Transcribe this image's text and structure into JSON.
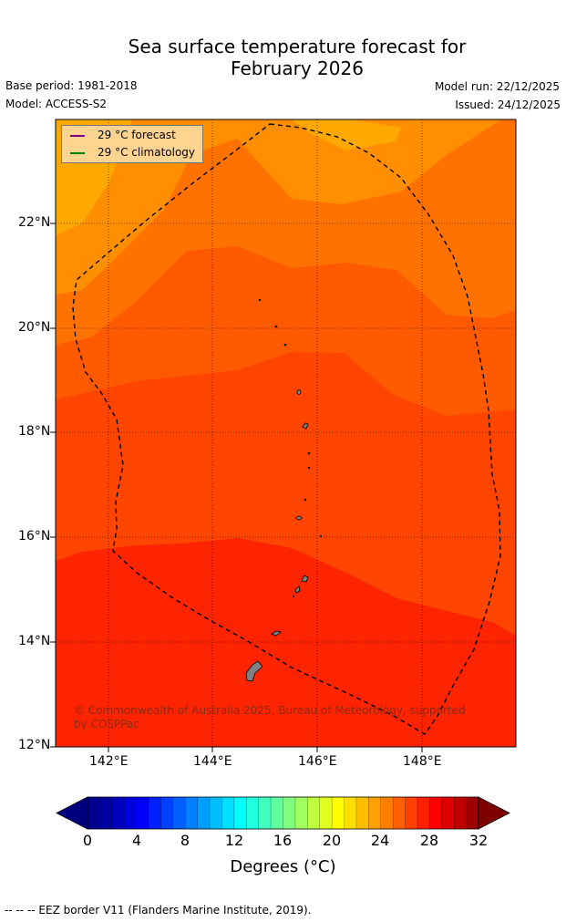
{
  "title_line1": "Sea surface temperature forecast for",
  "title_line2": "February 2026",
  "base_period": "Base period: 1981-2018",
  "model": "Model: ACCESS-S2",
  "model_run": "Model run: 22/12/2025",
  "issued": "Issued: 24/12/2025",
  "legend": {
    "forecast_label": "29 °C  forecast",
    "forecast_color": "#800080",
    "climatology_label": "29 °C  climatology",
    "climatology_color": "#008000"
  },
  "axes": {
    "lon_ticks": [
      "142°E",
      "144°E",
      "146°E",
      "148°E"
    ],
    "lat_ticks": [
      "22°N",
      "20°N",
      "18°N",
      "16°N",
      "14°N",
      "12°N"
    ]
  },
  "colorbar": {
    "tick_labels": [
      "0",
      "4",
      "8",
      "12",
      "16",
      "20",
      "24",
      "28",
      "32"
    ],
    "title": "Degrees (°C)",
    "colors": [
      "#00008f",
      "#00009f",
      "#0000bf",
      "#0000df",
      "#0000ff",
      "#0020ff",
      "#0040ff",
      "#0060ff",
      "#0080ff",
      "#009fff",
      "#00bfff",
      "#00dfff",
      "#00ffff",
      "#20ffdf",
      "#40ffbf",
      "#60ff9f",
      "#80ff80",
      "#9fff60",
      "#bfff40",
      "#dfff20",
      "#ffff00",
      "#ffdf00",
      "#ffbf00",
      "#ff9f00",
      "#ff8000",
      "#ff6000",
      "#ff4000",
      "#ff2000",
      "#ff0000",
      "#df0000",
      "#bf0000",
      "#9f0000"
    ],
    "under_color": "#00007f",
    "over_color": "#7f0000"
  },
  "copyright": "© Commonwealth of Australia 2025, Bureau of Meteorology, supported by COSPPac",
  "footnote": "--  --  -- EEZ border V11 (Flanders Marine Institute, 2019)."
}
